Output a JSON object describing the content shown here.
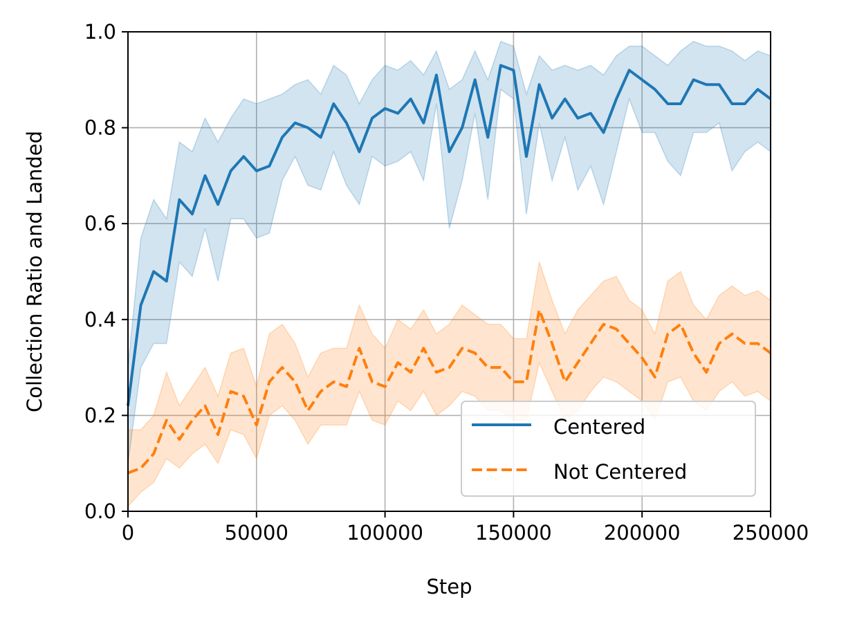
{
  "chart_data": {
    "type": "line",
    "title": "",
    "xlabel": "Step",
    "ylabel": "Collection Ratio and Landed",
    "xlim": [
      0,
      250000
    ],
    "ylim": [
      0.0,
      1.0
    ],
    "x_ticks": [
      0,
      50000,
      100000,
      150000,
      200000,
      250000
    ],
    "x_tick_labels": [
      "0",
      "50000",
      "100000",
      "150000",
      "200000",
      "250000"
    ],
    "y_ticks": [
      0.0,
      0.2,
      0.4,
      0.6,
      0.8,
      1.0
    ],
    "y_tick_labels": [
      "0.0",
      "0.2",
      "0.4",
      "0.6",
      "0.8",
      "1.0"
    ],
    "grid": true,
    "legend_position": "lower-right",
    "x": [
      0,
      5000,
      10000,
      15000,
      20000,
      25000,
      30000,
      35000,
      40000,
      45000,
      50000,
      55000,
      60000,
      65000,
      70000,
      75000,
      80000,
      85000,
      90000,
      95000,
      100000,
      105000,
      110000,
      115000,
      120000,
      125000,
      130000,
      135000,
      140000,
      145000,
      150000,
      155000,
      160000,
      165000,
      170000,
      175000,
      180000,
      185000,
      190000,
      195000,
      200000,
      205000,
      210000,
      215000,
      220000,
      225000,
      230000,
      235000,
      240000,
      245000,
      250000
    ],
    "series": [
      {
        "name": "Centered",
        "color": "#1f77b4",
        "band_color": "#1f77b4",
        "linestyle": "solid",
        "values": [
          0.22,
          0.43,
          0.5,
          0.48,
          0.65,
          0.62,
          0.7,
          0.64,
          0.71,
          0.74,
          0.71,
          0.72,
          0.78,
          0.81,
          0.8,
          0.78,
          0.85,
          0.81,
          0.75,
          0.82,
          0.84,
          0.83,
          0.86,
          0.81,
          0.91,
          0.75,
          0.8,
          0.9,
          0.78,
          0.93,
          0.92,
          0.74,
          0.89,
          0.82,
          0.86,
          0.82,
          0.83,
          0.79,
          0.86,
          0.92,
          0.9,
          0.88,
          0.85,
          0.85,
          0.9,
          0.89,
          0.89,
          0.85,
          0.85,
          0.88,
          0.86
        ],
        "lower": [
          0.1,
          0.3,
          0.35,
          0.35,
          0.52,
          0.49,
          0.59,
          0.48,
          0.61,
          0.61,
          0.57,
          0.58,
          0.69,
          0.74,
          0.68,
          0.67,
          0.75,
          0.68,
          0.64,
          0.74,
          0.72,
          0.73,
          0.75,
          0.69,
          0.85,
          0.59,
          0.69,
          0.83,
          0.65,
          0.88,
          0.86,
          0.62,
          0.81,
          0.69,
          0.78,
          0.67,
          0.72,
          0.64,
          0.75,
          0.86,
          0.79,
          0.79,
          0.73,
          0.7,
          0.79,
          0.79,
          0.81,
          0.71,
          0.75,
          0.77,
          0.75
        ],
        "upper": [
          0.3,
          0.57,
          0.65,
          0.61,
          0.77,
          0.75,
          0.82,
          0.77,
          0.82,
          0.86,
          0.85,
          0.86,
          0.87,
          0.89,
          0.9,
          0.87,
          0.93,
          0.91,
          0.85,
          0.9,
          0.93,
          0.92,
          0.94,
          0.91,
          0.96,
          0.88,
          0.9,
          0.96,
          0.9,
          0.98,
          0.97,
          0.87,
          0.95,
          0.92,
          0.93,
          0.92,
          0.93,
          0.91,
          0.95,
          0.97,
          0.97,
          0.95,
          0.93,
          0.96,
          0.98,
          0.97,
          0.97,
          0.96,
          0.94,
          0.96,
          0.95
        ]
      },
      {
        "name": "Not Centered",
        "color": "#ff7f0e",
        "band_color": "#ff7f0e",
        "linestyle": "dashed",
        "values": [
          0.08,
          0.09,
          0.12,
          0.19,
          0.15,
          0.19,
          0.22,
          0.16,
          0.25,
          0.24,
          0.18,
          0.27,
          0.3,
          0.27,
          0.21,
          0.25,
          0.27,
          0.26,
          0.34,
          0.27,
          0.26,
          0.31,
          0.29,
          0.34,
          0.29,
          0.3,
          0.34,
          0.33,
          0.3,
          0.3,
          0.27,
          0.27,
          0.42,
          0.35,
          0.27,
          0.31,
          0.35,
          0.39,
          0.38,
          0.35,
          0.32,
          0.28,
          0.37,
          0.39,
          0.33,
          0.29,
          0.35,
          0.37,
          0.35,
          0.35,
          0.33
        ],
        "lower": [
          0.01,
          0.04,
          0.06,
          0.11,
          0.09,
          0.12,
          0.14,
          0.1,
          0.17,
          0.16,
          0.11,
          0.2,
          0.22,
          0.19,
          0.14,
          0.18,
          0.18,
          0.18,
          0.25,
          0.19,
          0.18,
          0.23,
          0.21,
          0.25,
          0.2,
          0.22,
          0.25,
          0.24,
          0.21,
          0.21,
          0.19,
          0.19,
          0.31,
          0.25,
          0.19,
          0.21,
          0.25,
          0.28,
          0.27,
          0.25,
          0.23,
          0.19,
          0.27,
          0.28,
          0.23,
          0.21,
          0.25,
          0.27,
          0.24,
          0.25,
          0.23
        ],
        "upper": [
          0.17,
          0.17,
          0.2,
          0.29,
          0.22,
          0.26,
          0.3,
          0.24,
          0.33,
          0.34,
          0.26,
          0.37,
          0.39,
          0.35,
          0.28,
          0.33,
          0.34,
          0.34,
          0.43,
          0.37,
          0.34,
          0.4,
          0.38,
          0.42,
          0.37,
          0.39,
          0.43,
          0.41,
          0.39,
          0.39,
          0.36,
          0.36,
          0.52,
          0.44,
          0.37,
          0.42,
          0.45,
          0.48,
          0.49,
          0.44,
          0.42,
          0.37,
          0.48,
          0.5,
          0.43,
          0.4,
          0.45,
          0.47,
          0.45,
          0.46,
          0.44
        ]
      }
    ]
  }
}
